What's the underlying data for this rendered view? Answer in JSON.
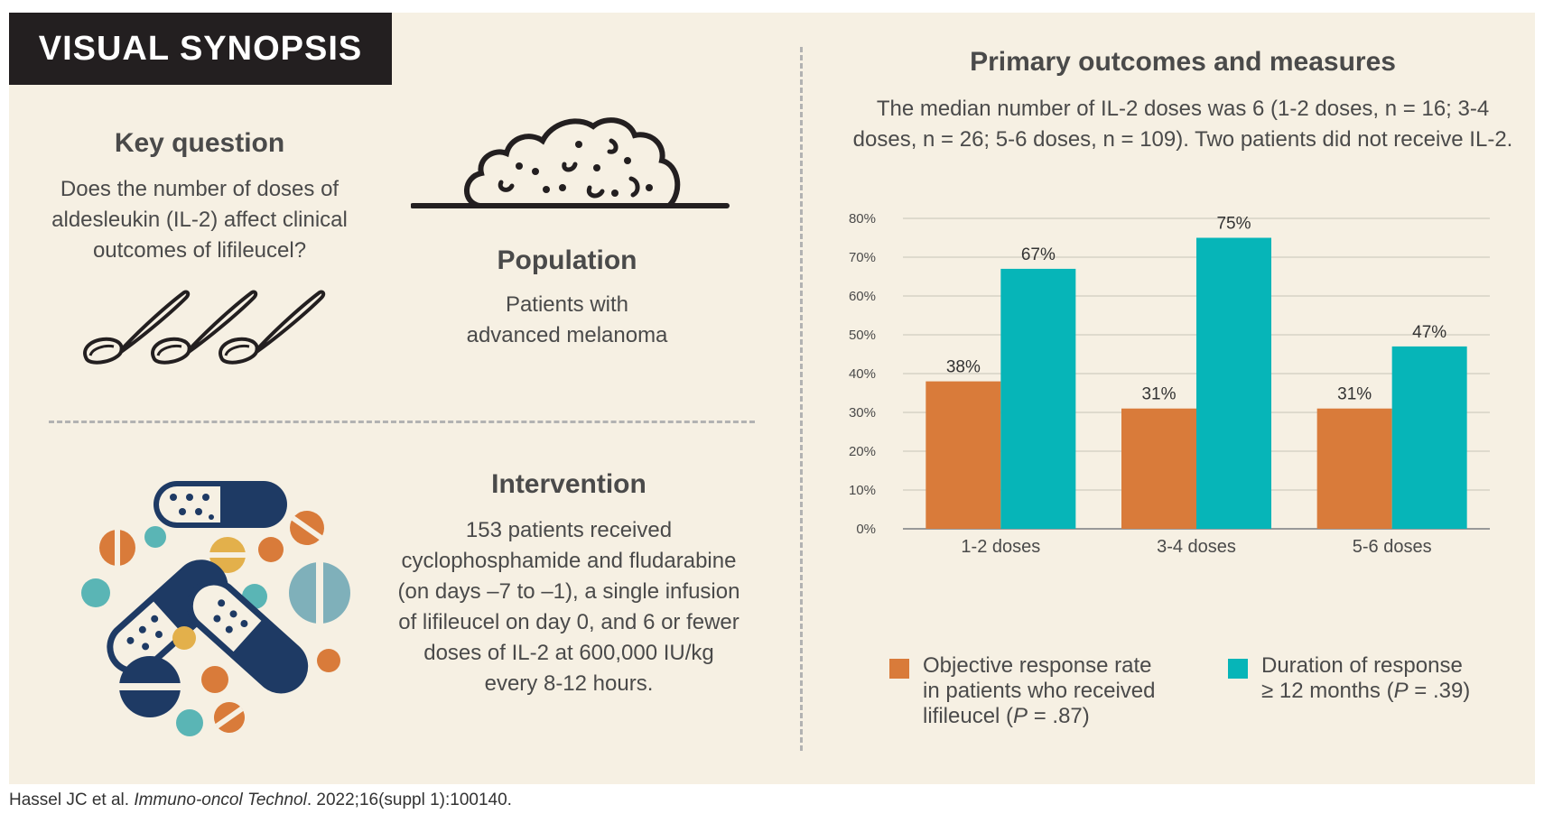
{
  "banner": "VISUAL SYNOPSIS",
  "key_question": {
    "title": "Key question",
    "lines": [
      "Does the number of doses of",
      "aldesleukin (IL-2) affect clinical",
      "outcomes of lifileucel?"
    ]
  },
  "population": {
    "title": "Population",
    "lines": [
      "Patients with",
      "advanced melanoma"
    ]
  },
  "intervention": {
    "title": "Intervention",
    "lines": [
      "153 patients received",
      "cyclophosphamide and fludarabine",
      "(on days –7 to –1), a single infusion",
      "of lifileucel on day 0, and 6 or fewer",
      "doses of IL-2 at 600,000 IU/kg",
      "every 8-12 hours."
    ]
  },
  "outcomes": {
    "title": "Primary outcomes and measures",
    "lines": [
      "The median number of IL-2 doses was 6 (1-2 doses, n = 16; 3-4",
      "doses, n = 26; 5-6 doses, n = 109). Two patients did not receive IL-2."
    ]
  },
  "chart_data": {
    "type": "bar",
    "categories": [
      "1-2 doses",
      "3-4 doses",
      "5-6 doses"
    ],
    "series": [
      {
        "name": "Objective response rate in patients who received lifileucel (P = .87)",
        "values": [
          38,
          31,
          31
        ],
        "labels": [
          "38%",
          "31%",
          "31%"
        ],
        "color": "#d97b3a"
      },
      {
        "name": "Duration of response ≥ 12 months (P = .39)",
        "values": [
          67,
          75,
          47
        ],
        "labels": [
          "67%",
          "75%",
          "47%"
        ],
        "color": "#06b5b8"
      }
    ],
    "yticks": [
      "0%",
      "10%",
      "20%",
      "30%",
      "40%",
      "50%",
      "60%",
      "70%",
      "80%"
    ],
    "ylim": [
      0,
      80
    ],
    "grid": true,
    "legend_position": "bottom"
  },
  "legend": {
    "orr_lines": [
      "Objective response rate",
      "in patients who received"
    ],
    "orr_last_pre": "lifileucel (",
    "orr_p": "P",
    "orr_last_post": " = .87)",
    "dor_line1": "Duration of response",
    "dor_pre": "≥ 12 months (",
    "dor_p": "P",
    "dor_post": " = .39)"
  },
  "citation": {
    "authors": "Hassel JC et al. ",
    "journal": "Immuno-oncol Technol",
    "rest": ". 2022;16(suppl 1):100140."
  },
  "colors": {
    "background": "#f6f0e3",
    "orr": "#d97b3a",
    "dor": "#06b5b8",
    "navy": "#1e3a64",
    "teal_pill": "#5ab5b5"
  }
}
